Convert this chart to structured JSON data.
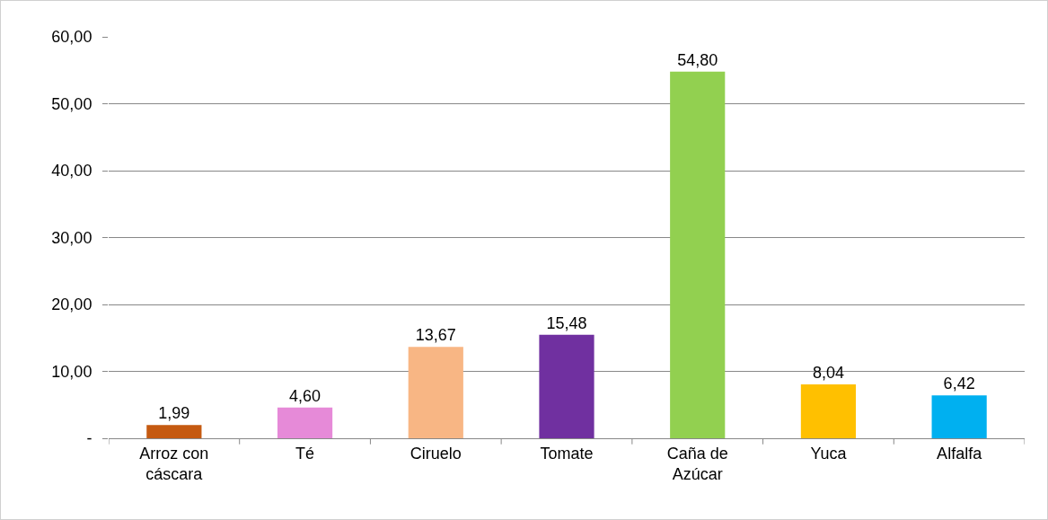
{
  "chart_data": {
    "type": "bar",
    "categories": [
      "Arroz con cáscara",
      "Té",
      "Ciruelo",
      "Tomate",
      "Caña de Azúcar",
      "Yuca",
      "Alfalfa"
    ],
    "values": [
      1.99,
      4.6,
      13.67,
      15.48,
      54.8,
      8.04,
      6.42
    ],
    "value_labels": [
      "1,99",
      "4,60",
      "13,67",
      "15,48",
      "54,80",
      "8,04",
      "6,42"
    ],
    "colors": [
      "#c55a11",
      "#e68ad8",
      "#f8b684",
      "#7030a0",
      "#92d050",
      "#ffc000",
      "#00b0f0"
    ],
    "ylim": [
      0,
      60
    ],
    "yticks": [
      {
        "value": 0,
        "label": "-"
      },
      {
        "value": 10,
        "label": "10,00"
      },
      {
        "value": 20,
        "label": "20,00"
      },
      {
        "value": 30,
        "label": "30,00"
      },
      {
        "value": 40,
        "label": "40,00"
      },
      {
        "value": 50,
        "label": "50,00"
      },
      {
        "value": 60,
        "label": "60,00"
      }
    ],
    "grid": "y"
  }
}
